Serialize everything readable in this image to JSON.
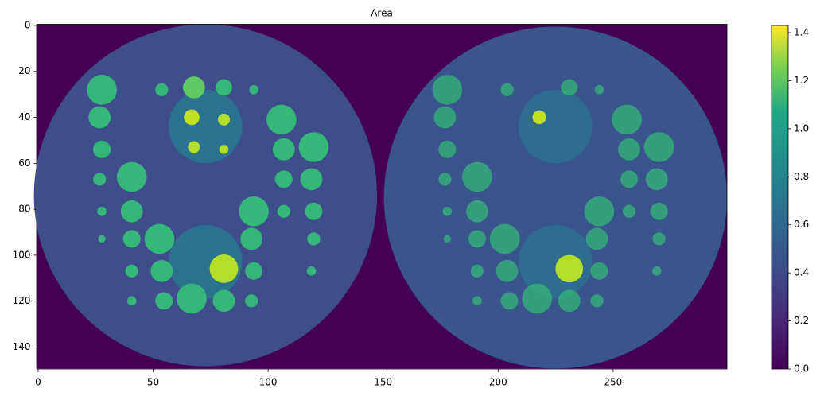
{
  "chart_data": {
    "type": "image",
    "title": "Area",
    "xlim": [
      -0.5,
      299.5
    ],
    "ylim": [
      149.5,
      -0.5
    ],
    "xticks": [
      0,
      50,
      100,
      150,
      200,
      250
    ],
    "yticks": [
      0,
      20,
      40,
      60,
      80,
      100,
      120,
      140
    ],
    "colorbar": {
      "clim": [
        0,
        1.43
      ],
      "colormap": "viridis",
      "ticks": [
        {
          "value": 0,
          "label": "0.0"
        },
        {
          "value": 0.2,
          "label": "0.2"
        },
        {
          "value": 0.4,
          "label": "0.4"
        },
        {
          "value": 0.6,
          "label": "0.6"
        },
        {
          "value": 0.8,
          "label": "0.8"
        },
        {
          "value": 1.0,
          "label": "1.0"
        },
        {
          "value": 1.2,
          "label": "1.2"
        },
        {
          "value": 1.4,
          "label": "1.4"
        }
      ]
    }
  }
}
